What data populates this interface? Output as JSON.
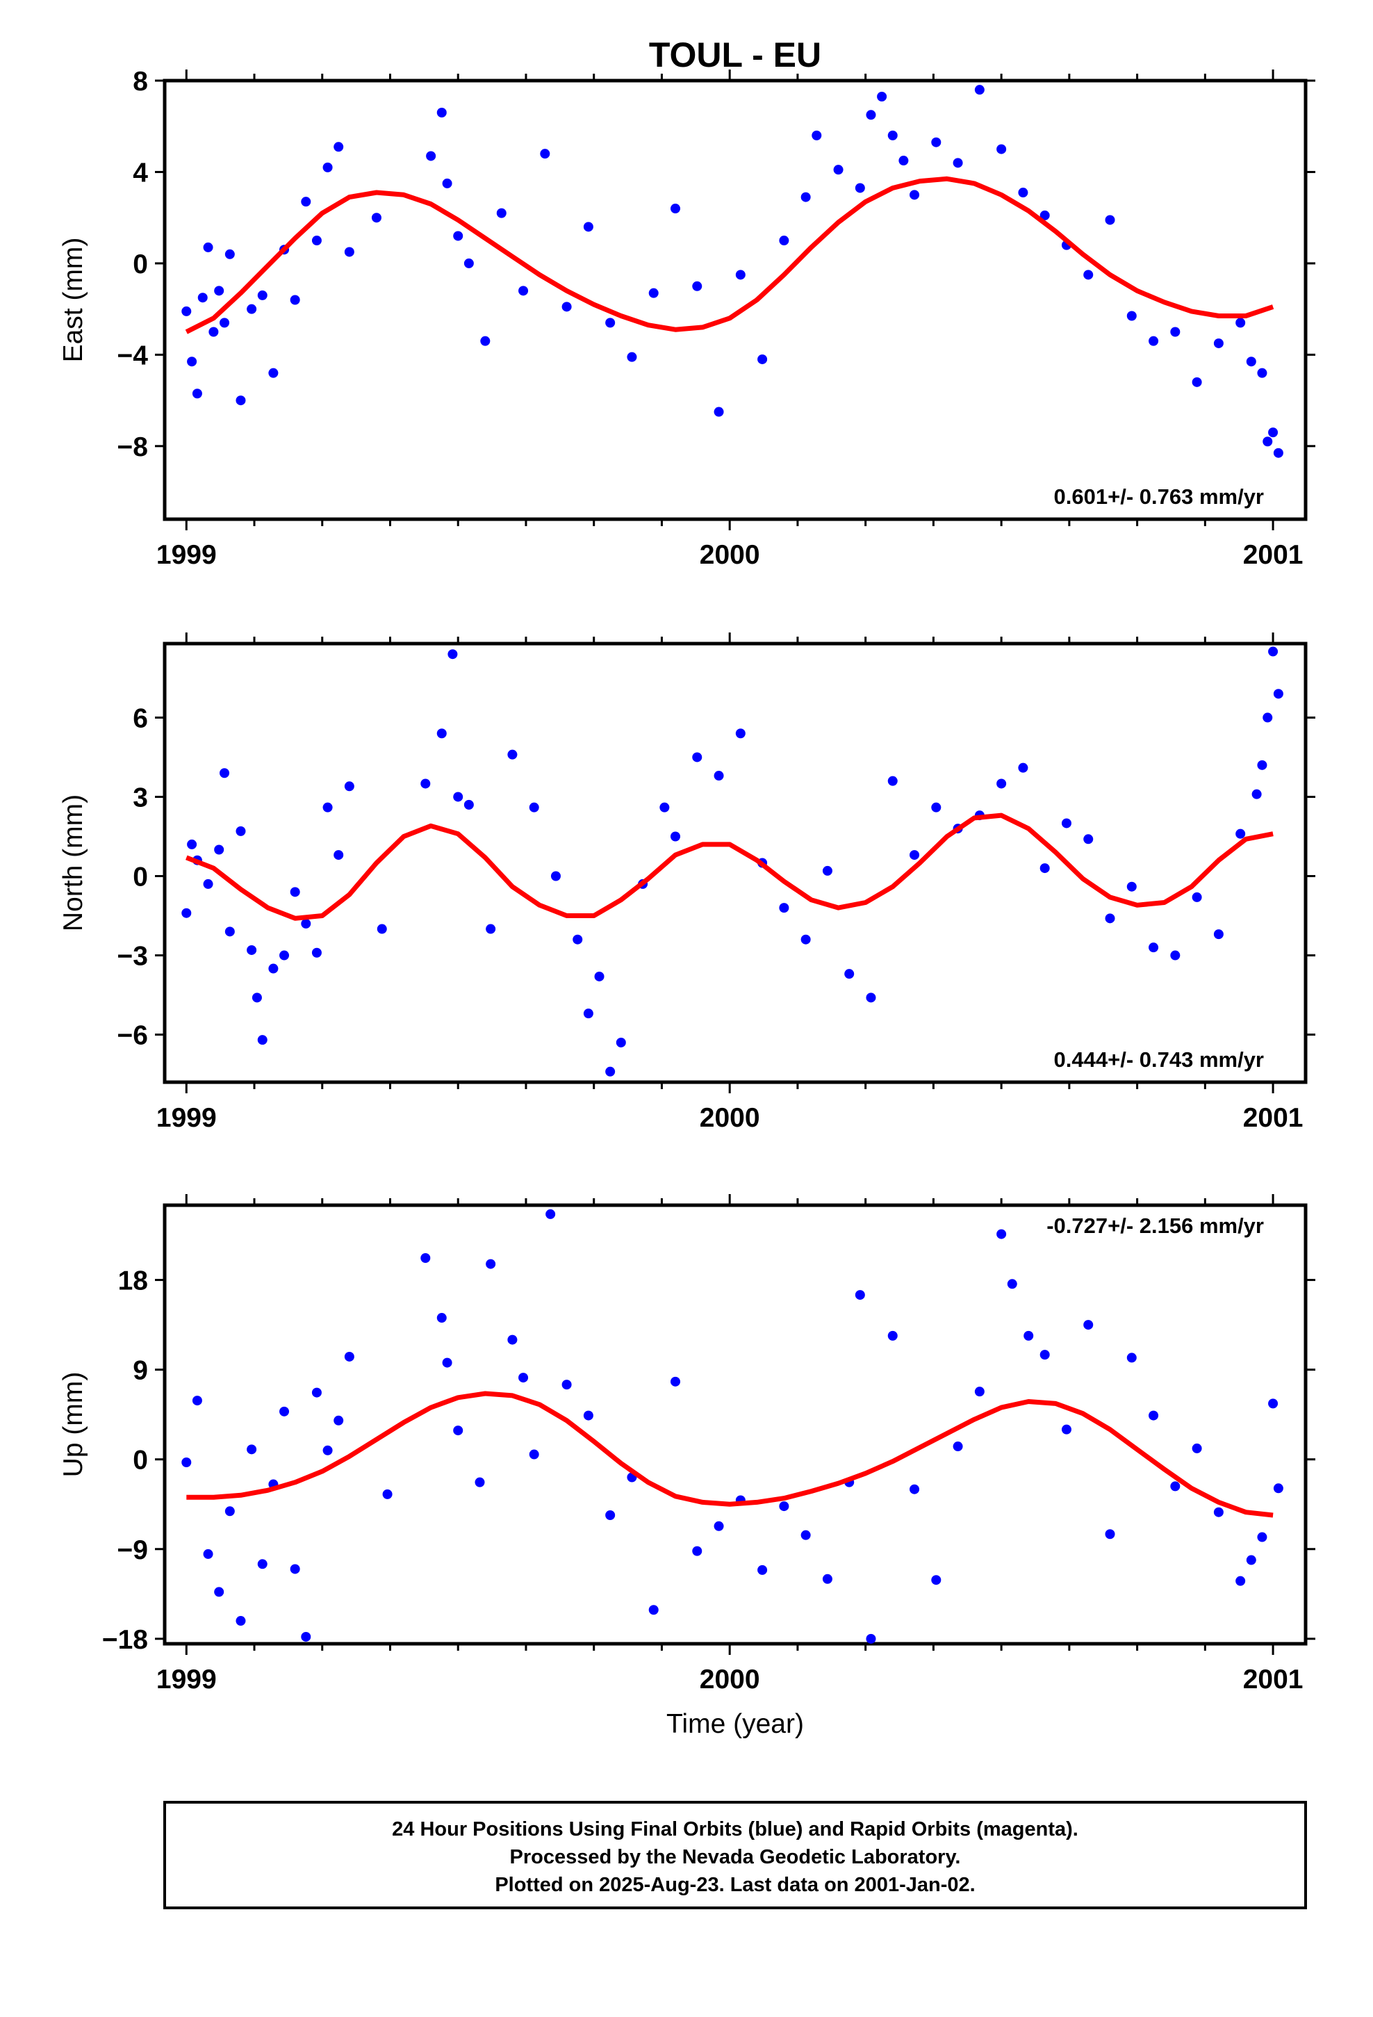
{
  "chart_data": [
    {
      "type": "scatter",
      "title": "TOUL - EU",
      "ylabel": "East (mm)",
      "xlabel": "",
      "xlim": [
        1998.96,
        2001.06
      ],
      "ylim": [
        -11.2,
        8
      ],
      "yticks": [
        8,
        4,
        0,
        -4,
        -8
      ],
      "xticks": [
        1999,
        2000,
        2001
      ],
      "rate_text": "0.601+/- 0.763 mm/yr",
      "series": [
        {
          "marker": "point",
          "color": "#0000ff",
          "x": [
            1999.0,
            1999.01,
            1999.02,
            1999.03,
            1999.04,
            1999.05,
            1999.06,
            1999.07,
            1999.08,
            1999.1,
            1999.12,
            1999.14,
            1999.16,
            1999.18,
            1999.2,
            1999.22,
            1999.24,
            1999.26,
            1999.28,
            1999.3,
            1999.35,
            1999.45,
            1999.47,
            1999.48,
            1999.5,
            1999.52,
            1999.55,
            1999.58,
            1999.62,
            1999.66,
            1999.7,
            1999.74,
            1999.78,
            1999.82,
            1999.86,
            1999.9,
            1999.94,
            1999.98,
            2000.02,
            2000.06,
            2000.1,
            2000.14,
            2000.16,
            2000.2,
            2000.24,
            2000.26,
            2000.28,
            2000.3,
            2000.32,
            2000.34,
            2000.38,
            2000.42,
            2000.46,
            2000.5,
            2000.54,
            2000.58,
            2000.62,
            2000.66,
            2000.7,
            2000.74,
            2000.78,
            2000.82,
            2000.86,
            2000.9,
            2000.94,
            2000.96,
            2000.98,
            2000.99,
            2001.0,
            2001.01
          ],
          "y": [
            -2.1,
            -4.3,
            -5.7,
            -1.5,
            0.7,
            -3.0,
            -1.2,
            -2.6,
            0.4,
            -6.0,
            -2.0,
            -1.4,
            -4.8,
            0.6,
            -1.6,
            2.7,
            1.0,
            4.2,
            5.1,
            0.5,
            2.0,
            4.7,
            6.6,
            3.5,
            1.2,
            0.0,
            -3.4,
            2.2,
            -1.2,
            4.8,
            -1.9,
            1.6,
            -2.6,
            -4.1,
            -1.3,
            2.4,
            -1.0,
            -6.5,
            -0.5,
            -4.2,
            1.0,
            2.9,
            5.6,
            4.1,
            3.3,
            6.5,
            7.3,
            5.6,
            4.5,
            3.0,
            5.3,
            4.4,
            7.6,
            5.0,
            3.1,
            2.1,
            0.8,
            -0.5,
            1.9,
            -2.3,
            -3.4,
            -3.0,
            -5.2,
            -3.5,
            -2.6,
            -4.3,
            -4.8,
            -7.8,
            -7.4,
            -8.3
          ]
        },
        {
          "marker": "line",
          "color": "#ff0000",
          "x": [
            1999.0,
            1999.05,
            1999.1,
            1999.15,
            1999.2,
            1999.25,
            1999.3,
            1999.35,
            1999.4,
            1999.45,
            1999.5,
            1999.55,
            1999.6,
            1999.65,
            1999.7,
            1999.75,
            1999.8,
            1999.85,
            1999.9,
            1999.95,
            2000.0,
            2000.05,
            2000.1,
            2000.15,
            2000.2,
            2000.25,
            2000.3,
            2000.35,
            2000.4,
            2000.45,
            2000.5,
            2000.55,
            2000.6,
            2000.65,
            2000.7,
            2000.75,
            2000.8,
            2000.85,
            2000.9,
            2000.95,
            2001.0
          ],
          "y": [
            -3.0,
            -2.4,
            -1.3,
            -0.1,
            1.1,
            2.2,
            2.9,
            3.1,
            3.0,
            2.6,
            1.9,
            1.1,
            0.3,
            -0.5,
            -1.2,
            -1.8,
            -2.3,
            -2.7,
            -2.9,
            -2.8,
            -2.4,
            -1.6,
            -0.5,
            0.7,
            1.8,
            2.7,
            3.3,
            3.6,
            3.7,
            3.5,
            3.0,
            2.3,
            1.4,
            0.4,
            -0.5,
            -1.2,
            -1.7,
            -2.1,
            -2.3,
            -2.3,
            -1.9
          ]
        }
      ]
    },
    {
      "type": "scatter",
      "title": "",
      "ylabel": "North (mm)",
      "xlabel": "",
      "xlim": [
        1998.96,
        2001.06
      ],
      "ylim": [
        -7.8,
        8.8
      ],
      "yticks": [
        6,
        3,
        0,
        -3,
        -6
      ],
      "xticks": [
        1999,
        2000,
        2001
      ],
      "rate_text": "0.444+/- 0.743 mm/yr",
      "series": [
        {
          "marker": "point",
          "color": "#0000ff",
          "x": [
            1999.0,
            1999.01,
            1999.02,
            1999.04,
            1999.06,
            1999.07,
            1999.08,
            1999.1,
            1999.12,
            1999.13,
            1999.14,
            1999.16,
            1999.18,
            1999.2,
            1999.22,
            1999.24,
            1999.26,
            1999.28,
            1999.3,
            1999.36,
            1999.44,
            1999.47,
            1999.49,
            1999.5,
            1999.52,
            1999.56,
            1999.6,
            1999.64,
            1999.68,
            1999.72,
            1999.74,
            1999.76,
            1999.78,
            1999.8,
            1999.84,
            1999.88,
            1999.9,
            1999.94,
            1999.98,
            2000.02,
            2000.06,
            2000.1,
            2000.14,
            2000.18,
            2000.22,
            2000.26,
            2000.3,
            2000.34,
            2000.38,
            2000.42,
            2000.46,
            2000.5,
            2000.54,
            2000.58,
            2000.62,
            2000.66,
            2000.7,
            2000.74,
            2000.78,
            2000.82,
            2000.86,
            2000.9,
            2000.94,
            2000.97,
            2000.98,
            2000.99,
            2001.0,
            2001.01
          ],
          "y": [
            -1.4,
            1.2,
            0.6,
            -0.3,
            1.0,
            3.9,
            -2.1,
            1.7,
            -2.8,
            -4.6,
            -6.2,
            -3.5,
            -3.0,
            -0.6,
            -1.8,
            -2.9,
            2.6,
            0.8,
            3.4,
            -2.0,
            3.5,
            5.4,
            8.4,
            3.0,
            2.7,
            -2.0,
            4.6,
            2.6,
            0.0,
            -2.4,
            -5.2,
            -3.8,
            -7.4,
            -6.3,
            -0.3,
            2.6,
            1.5,
            4.5,
            3.8,
            5.4,
            0.5,
            -1.2,
            -2.4,
            0.2,
            -3.7,
            -4.6,
            3.6,
            0.8,
            2.6,
            1.8,
            2.3,
            3.5,
            4.1,
            0.3,
            2.0,
            1.4,
            -1.6,
            -0.4,
            -2.7,
            -3.0,
            -0.8,
            -2.2,
            1.6,
            3.1,
            4.2,
            6.0,
            8.5,
            6.9
          ]
        },
        {
          "marker": "line",
          "color": "#ff0000",
          "x": [
            1999.0,
            1999.05,
            1999.1,
            1999.15,
            1999.2,
            1999.25,
            1999.3,
            1999.35,
            1999.4,
            1999.45,
            1999.5,
            1999.55,
            1999.6,
            1999.65,
            1999.7,
            1999.75,
            1999.8,
            1999.85,
            1999.9,
            1999.95,
            2000.0,
            2000.05,
            2000.1,
            2000.15,
            2000.2,
            2000.25,
            2000.3,
            2000.35,
            2000.4,
            2000.45,
            2000.5,
            2000.55,
            2000.6,
            2000.65,
            2000.7,
            2000.75,
            2000.8,
            2000.85,
            2000.9,
            2000.95,
            2001.0
          ],
          "y": [
            0.7,
            0.3,
            -0.5,
            -1.2,
            -1.6,
            -1.5,
            -0.7,
            0.5,
            1.5,
            1.9,
            1.6,
            0.7,
            -0.4,
            -1.1,
            -1.5,
            -1.5,
            -0.9,
            -0.1,
            0.8,
            1.2,
            1.2,
            0.6,
            -0.2,
            -0.9,
            -1.2,
            -1.0,
            -0.4,
            0.5,
            1.5,
            2.2,
            2.3,
            1.8,
            0.9,
            -0.1,
            -0.8,
            -1.1,
            -1.0,
            -0.4,
            0.6,
            1.4,
            1.6
          ]
        }
      ]
    },
    {
      "type": "scatter",
      "title": "",
      "ylabel": "Up (mm)",
      "xlabel": "Time (year)",
      "xlim": [
        1998.96,
        2001.06
      ],
      "ylim": [
        -18.5,
        25.5
      ],
      "yticks": [
        18,
        9,
        0,
        -9,
        -18
      ],
      "xticks": [
        1999,
        2000,
        2001
      ],
      "rate_text": "-0.727+/- 2.156 mm/yr",
      "series": [
        {
          "marker": "point",
          "color": "#0000ff",
          "x": [
            1999.0,
            1999.02,
            1999.04,
            1999.06,
            1999.08,
            1999.1,
            1999.12,
            1999.14,
            1999.16,
            1999.18,
            1999.2,
            1999.22,
            1999.24,
            1999.26,
            1999.28,
            1999.3,
            1999.37,
            1999.44,
            1999.47,
            1999.48,
            1999.5,
            1999.54,
            1999.56,
            1999.6,
            1999.62,
            1999.64,
            1999.67,
            1999.7,
            1999.74,
            1999.78,
            1999.82,
            1999.86,
            1999.9,
            1999.94,
            1999.98,
            2000.02,
            2000.06,
            2000.1,
            2000.14,
            2000.18,
            2000.22,
            2000.24,
            2000.26,
            2000.3,
            2000.34,
            2000.38,
            2000.42,
            2000.46,
            2000.5,
            2000.52,
            2000.55,
            2000.58,
            2000.62,
            2000.66,
            2000.7,
            2000.74,
            2000.78,
            2000.82,
            2000.86,
            2000.9,
            2000.94,
            2000.96,
            2000.98,
            2001.0,
            2001.01
          ],
          "y": [
            -0.3,
            5.9,
            -9.5,
            -13.3,
            -5.2,
            -16.2,
            1.0,
            -10.5,
            -2.5,
            4.8,
            -11.0,
            -17.8,
            6.7,
            0.9,
            3.9,
            10.3,
            -3.5,
            20.2,
            14.2,
            9.7,
            2.9,
            -2.3,
            19.6,
            12.0,
            8.2,
            0.5,
            24.6,
            7.5,
            4.4,
            -5.6,
            -1.8,
            -15.1,
            7.8,
            -9.2,
            -6.7,
            -4.1,
            -11.1,
            -4.7,
            -7.6,
            -12.0,
            -2.3,
            16.5,
            -18.0,
            12.4,
            -3.0,
            -12.1,
            1.3,
            6.8,
            22.6,
            17.6,
            12.4,
            10.5,
            3.0,
            13.5,
            -7.5,
            10.2,
            4.4,
            -2.7,
            1.1,
            -5.3,
            -12.2,
            -10.1,
            -7.8,
            5.6,
            -2.9
          ]
        },
        {
          "marker": "line",
          "color": "#ff0000",
          "x": [
            1999.0,
            1999.05,
            1999.1,
            1999.15,
            1999.2,
            1999.25,
            1999.3,
            1999.35,
            1999.4,
            1999.45,
            1999.5,
            1999.55,
            1999.6,
            1999.65,
            1999.7,
            1999.75,
            1999.8,
            1999.85,
            1999.9,
            1999.95,
            2000.0,
            2000.05,
            2000.1,
            2000.15,
            2000.2,
            2000.25,
            2000.3,
            2000.35,
            2000.4,
            2000.45,
            2000.5,
            2000.55,
            2000.6,
            2000.65,
            2000.7,
            2000.75,
            2000.8,
            2000.85,
            2000.9,
            2000.95,
            2001.0
          ],
          "y": [
            -3.8,
            -3.8,
            -3.6,
            -3.1,
            -2.3,
            -1.2,
            0.3,
            2.0,
            3.7,
            5.2,
            6.2,
            6.6,
            6.4,
            5.5,
            3.9,
            1.8,
            -0.4,
            -2.3,
            -3.7,
            -4.3,
            -4.5,
            -4.3,
            -3.9,
            -3.2,
            -2.4,
            -1.4,
            -0.2,
            1.2,
            2.6,
            4.0,
            5.2,
            5.8,
            5.6,
            4.6,
            3.0,
            1.0,
            -1.0,
            -2.9,
            -4.3,
            -5.3,
            -5.6
          ]
        }
      ]
    }
  ],
  "footer": {
    "line1": "24 Hour Positions Using Final Orbits (blue) and Rapid Orbits (magenta).",
    "line2": "Processed by the Nevada Geodetic Laboratory.",
    "line3": "Plotted on 2025-Aug-23. Last data on 2001-Jan-02."
  }
}
